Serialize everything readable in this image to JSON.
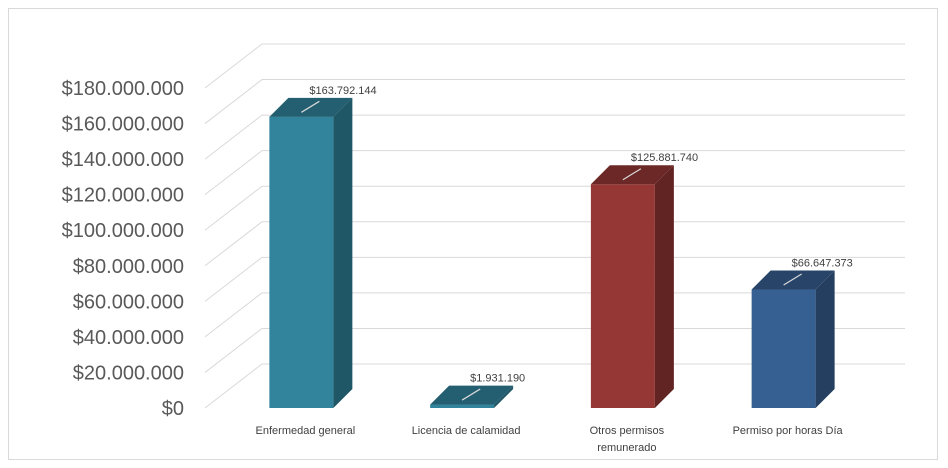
{
  "chart_data": {
    "type": "bar",
    "style": "3d-column",
    "categories": [
      [
        "Enfermedad general"
      ],
      [
        "Licencia de calamidad"
      ],
      [
        "Otros permisos",
        "remunerado"
      ],
      [
        "Permiso por horas Día"
      ]
    ],
    "values": [
      163792144,
      1931190,
      125881740,
      66647373
    ],
    "data_labels": [
      "$163.792.144",
      "$1.931.190",
      "$125.881.740",
      "$66.647.373"
    ],
    "colors": [
      "#31849b",
      "#31849b",
      "#953735",
      "#376092"
    ],
    "ylim": [
      0,
      180000000
    ],
    "yticks": [
      0,
      20000000,
      40000000,
      60000000,
      80000000,
      100000000,
      120000000,
      140000000,
      160000000,
      180000000
    ],
    "ytick_labels": [
      "$0",
      "$20.000.000",
      "$40.000.000",
      "$60.000.000",
      "$80.000.000",
      "$100.000.000",
      "$120.000.000",
      "$140.000.000",
      "$160.000.000",
      "$180.000.000"
    ],
    "grid": true,
    "legend": "none",
    "title": "",
    "xlabel": "",
    "ylabel": ""
  }
}
